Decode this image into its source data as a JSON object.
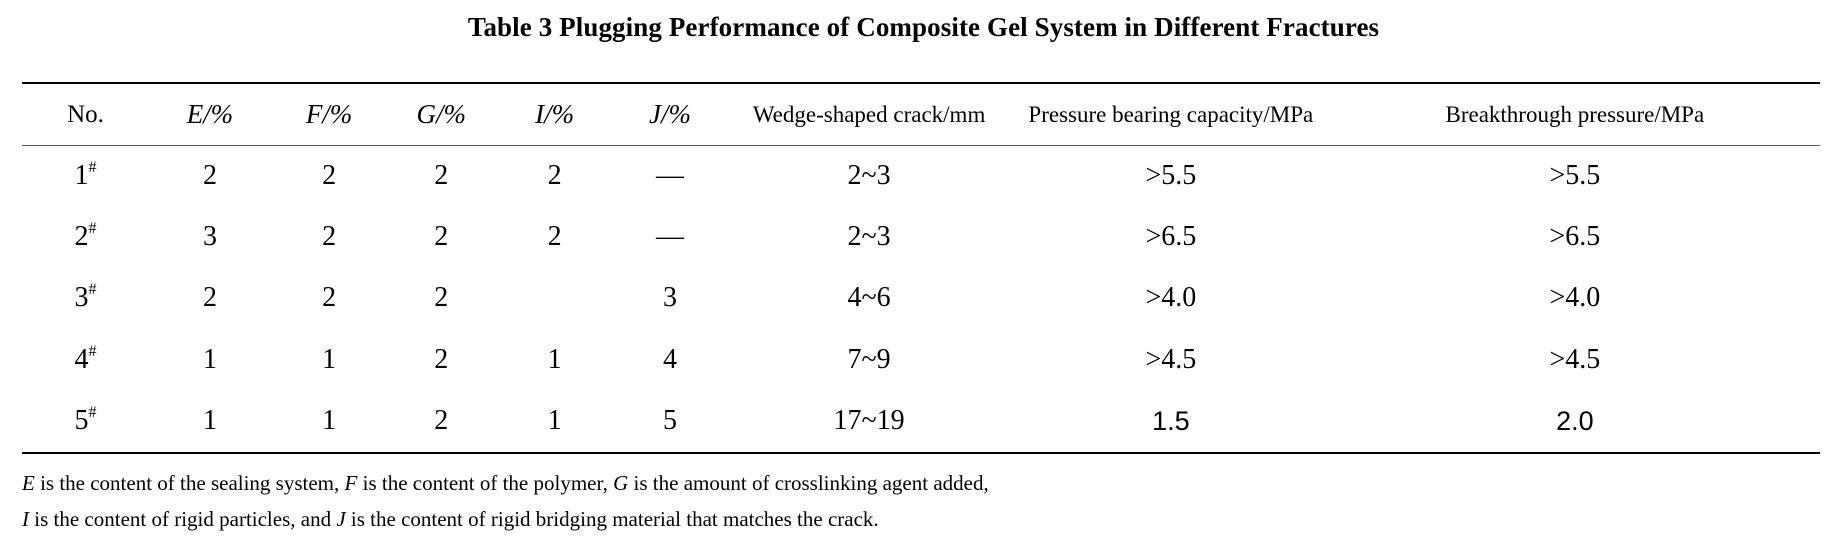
{
  "title": "Table 3 Plugging Performance of Composite Gel System in Different Fractures",
  "columns": [
    "No.",
    "E/%",
    "F/%",
    "G/%",
    "I/%",
    "J/%",
    "Wedge-shaped crack/mm",
    "Pressure bearing capacity/MPa",
    "Breakthrough pressure/MPa"
  ],
  "rows": [
    {
      "no": "1",
      "mark": "#",
      "e": "2",
      "f": "2",
      "g": "2",
      "i": "2",
      "j": "—",
      "crack": "2~3",
      "pressure": ">5.5",
      "breakthrough": ">5.5"
    },
    {
      "no": "2",
      "mark": "#",
      "e": "3",
      "f": "2",
      "g": "2",
      "i": "2",
      "j": "—",
      "crack": "2~3",
      "pressure": ">6.5",
      "breakthrough": ">6.5"
    },
    {
      "no": "3",
      "mark": "#",
      "e": "2",
      "f": "2",
      "g": "2",
      "i": "",
      "j": "3",
      "crack": "4~6",
      "pressure": ">4.0",
      "breakthrough": ">4.0"
    },
    {
      "no": "4",
      "mark": "#",
      "e": "1",
      "f": "1",
      "g": "2",
      "i": "1",
      "j": "4",
      "crack": "7~9",
      "pressure": ">4.5",
      "breakthrough": ">4.5"
    },
    {
      "no": "5",
      "mark": "#",
      "e": "1",
      "f": "1",
      "g": "2",
      "i": "1",
      "j": "5",
      "crack": "17~19",
      "pressure": "1.5",
      "breakthrough": "2.0"
    }
  ],
  "notes": {
    "line1": {
      "v1": "E",
      "t1": " is the content of the sealing system, ",
      "v2": "F",
      "t2": " is the content of the polymer, ",
      "v3": "G",
      "t3": " is the amount of crosslinking agent added,"
    },
    "line2": {
      "v1": "I",
      "t1": " is the content of rigid particles, and ",
      "v2": "J",
      "t2": " is the content of rigid bridging material that matches the crack."
    }
  }
}
